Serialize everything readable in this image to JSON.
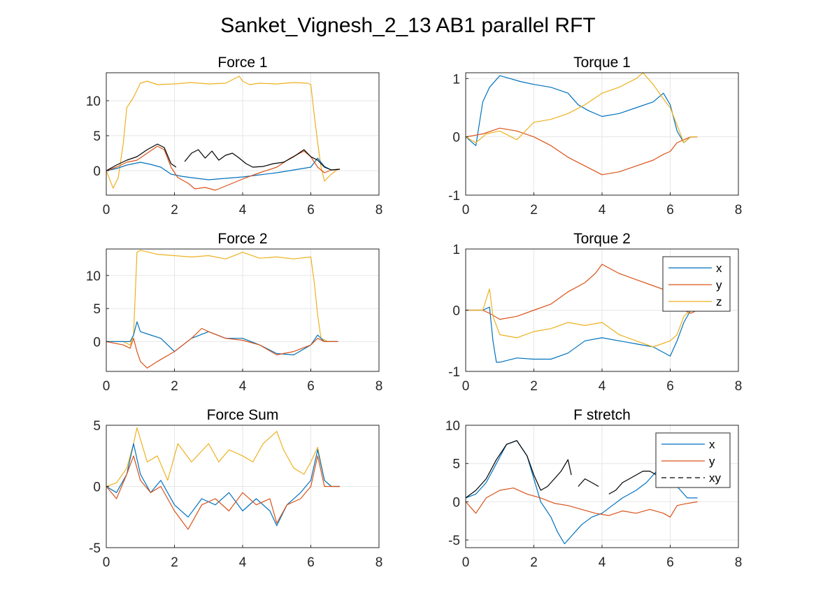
{
  "figure": {
    "title": "Sanket_Vignesh_2_13 AB1 parallel RFT"
  },
  "colors": {
    "x": "#0072BD",
    "y": "#D95319",
    "z": "#EDB120",
    "xy": "#000000",
    "grid": "#e6e6e6",
    "axis": "#262626"
  },
  "chart_data": [
    {
      "type": "line",
      "title": "Force 1",
      "xlim": [
        0,
        8
      ],
      "ylim": [
        -3.5,
        14
      ],
      "xticks": [
        0,
        2,
        4,
        6,
        8
      ],
      "yticks": [
        0,
        5,
        10
      ],
      "grid": true,
      "series": [
        {
          "key": "z",
          "x": [
            0,
            0.2,
            0.35,
            0.5,
            0.6,
            0.8,
            1.0,
            1.2,
            1.5,
            2.0,
            2.5,
            3.0,
            3.5,
            3.9,
            4.0,
            4.2,
            4.5,
            5.0,
            5.5,
            5.9,
            6.0,
            6.1,
            6.2,
            6.3,
            6.4,
            6.6,
            6.8,
            6.85
          ],
          "values": [
            0,
            -2.5,
            -1,
            4,
            9,
            10.5,
            12.5,
            12.8,
            12.3,
            12.4,
            12.6,
            12.4,
            12.5,
            13.5,
            12.8,
            12.3,
            12.5,
            12.4,
            12.6,
            12.5,
            12.3,
            8,
            4,
            0.5,
            -1.5,
            -0.5,
            0.2,
            0.2
          ]
        },
        {
          "key": "x",
          "x": [
            0,
            0.3,
            0.6,
            1.0,
            1.3,
            1.6,
            1.9,
            2.2,
            2.5,
            3.0,
            3.5,
            4.0,
            4.5,
            5.0,
            5.5,
            6.0,
            6.2,
            6.4,
            6.6,
            6.85
          ],
          "values": [
            0,
            0.3,
            0.8,
            1.2,
            0.9,
            0.5,
            -0.5,
            -0.8,
            -1.0,
            -1.3,
            -1.1,
            -0.9,
            -0.6,
            -0.3,
            0.1,
            0.5,
            1.8,
            0.6,
            0.1,
            0.2
          ]
        },
        {
          "key": "y",
          "x": [
            0,
            0.3,
            0.6,
            0.9,
            1.2,
            1.5,
            1.7,
            1.9,
            2.1,
            2.4,
            2.6,
            2.9,
            3.2,
            3.5,
            3.8,
            4.1,
            4.5,
            5.0,
            5.4,
            5.8,
            6.0,
            6.2,
            6.4,
            6.6,
            6.85
          ],
          "values": [
            0,
            0.5,
            1.2,
            1.5,
            2.5,
            3.5,
            3.0,
            0.5,
            -1.0,
            -1.8,
            -2.6,
            -2.4,
            -2.8,
            -2.2,
            -1.6,
            -1.0,
            -0.3,
            0.5,
            1.8,
            2.8,
            2.0,
            0.5,
            -0.3,
            0.1,
            0.2
          ]
        },
        {
          "key": "xy",
          "x": [
            0,
            0.3,
            0.6,
            0.9,
            1.2,
            1.5,
            1.7,
            1.9,
            2.05,
            null,
            2.3,
            2.5,
            2.7,
            2.9,
            3.1,
            3.3,
            3.5,
            3.7,
            3.9,
            4.1,
            4.3,
            4.6,
            4.9,
            5.2,
            5.5,
            5.8,
            6.0,
            6.2,
            6.4,
            6.6,
            6.85
          ],
          "values": [
            0,
            0.8,
            1.5,
            2.0,
            3.0,
            3.8,
            3.3,
            1.0,
            0.5,
            null,
            1.3,
            2.5,
            3.0,
            1.8,
            2.8,
            1.5,
            2.2,
            2.5,
            1.8,
            1.0,
            0.5,
            0.6,
            1.0,
            1.2,
            2.0,
            3.0,
            2.0,
            1.5,
            0.5,
            0.1,
            0.2
          ]
        }
      ]
    },
    {
      "type": "line",
      "title": "Torque 1",
      "xlim": [
        0,
        8
      ],
      "ylim": [
        -1,
        1.1
      ],
      "xticks": [
        0,
        2,
        4,
        6,
        8
      ],
      "yticks": [
        -1,
        0,
        1
      ],
      "grid": true,
      "series": [
        {
          "key": "x",
          "x": [
            0,
            0.3,
            0.5,
            0.7,
            1.0,
            1.3,
            1.6,
            2.0,
            2.5,
            3.0,
            3.3,
            3.6,
            4.0,
            4.5,
            5.0,
            5.5,
            5.8,
            6.0,
            6.2,
            6.4,
            6.6,
            6.8
          ],
          "values": [
            0,
            -0.15,
            0.6,
            0.85,
            1.05,
            1.0,
            0.95,
            0.9,
            0.85,
            0.75,
            0.55,
            0.45,
            0.35,
            0.4,
            0.5,
            0.6,
            0.75,
            0.55,
            0.1,
            -0.1,
            0,
            0
          ]
        },
        {
          "key": "y",
          "x": [
            0,
            0.5,
            1.0,
            1.5,
            2.0,
            2.5,
            3.0,
            3.5,
            4.0,
            4.5,
            5.0,
            5.5,
            5.8,
            6.0,
            6.2,
            6.4,
            6.6,
            6.8
          ],
          "values": [
            0,
            0.05,
            0.15,
            0.1,
            0.0,
            -0.15,
            -0.35,
            -0.5,
            -0.65,
            -0.6,
            -0.5,
            -0.4,
            -0.3,
            -0.25,
            -0.1,
            -0.05,
            0,
            0
          ]
        },
        {
          "key": "z",
          "x": [
            0,
            0.3,
            0.6,
            1.0,
            1.5,
            2.0,
            2.5,
            3.0,
            3.5,
            4.0,
            4.5,
            5.0,
            5.2,
            5.5,
            5.8,
            6.0,
            6.2,
            6.4,
            6.6,
            6.8
          ],
          "values": [
            0,
            -0.1,
            0.05,
            0.1,
            -0.05,
            0.25,
            0.3,
            0.4,
            0.55,
            0.75,
            0.85,
            1.0,
            1.1,
            0.9,
            0.65,
            0.5,
            0.2,
            -0.1,
            0,
            0
          ]
        }
      ]
    },
    {
      "type": "line",
      "title": "Force 2",
      "xlim": [
        0,
        8
      ],
      "ylim": [
        -4.5,
        14
      ],
      "xticks": [
        0,
        2,
        4,
        6,
        8
      ],
      "yticks": [
        0,
        5,
        10
      ],
      "grid": true,
      "series": [
        {
          "key": "z",
          "x": [
            0,
            0.5,
            0.7,
            0.8,
            0.9,
            1.0,
            1.5,
            2.0,
            2.5,
            3.0,
            3.5,
            4.0,
            4.5,
            5.0,
            5.5,
            6.0,
            6.1,
            6.2,
            6.3,
            6.5,
            6.8
          ],
          "values": [
            0,
            0,
            -0.5,
            1.0,
            13.5,
            13.8,
            13.2,
            13.0,
            12.8,
            13.0,
            12.5,
            13.5,
            12.6,
            12.8,
            12.5,
            12.8,
            9,
            4,
            0.5,
            0,
            0
          ]
        },
        {
          "key": "x",
          "x": [
            0,
            0.5,
            0.7,
            0.8,
            0.9,
            1.0,
            1.3,
            1.6,
            2.0,
            2.5,
            3.0,
            3.5,
            4.0,
            4.5,
            5.0,
            5.5,
            6.0,
            6.2,
            6.4,
            6.8
          ],
          "values": [
            0,
            0,
            0,
            1.0,
            3.0,
            1.5,
            1.0,
            0.5,
            -1.5,
            0.5,
            1.5,
            0.5,
            0.5,
            -0.5,
            -1.8,
            -2.0,
            -0.5,
            1.0,
            0,
            0
          ]
        },
        {
          "key": "y",
          "x": [
            0,
            0.5,
            0.7,
            0.8,
            0.9,
            1.0,
            1.2,
            1.5,
            2.0,
            2.5,
            2.8,
            3.0,
            3.5,
            4.0,
            4.5,
            5.0,
            5.5,
            6.0,
            6.2,
            6.4,
            6.8
          ],
          "values": [
            0,
            -0.5,
            -1.0,
            0.5,
            -1.5,
            -3.0,
            -4.0,
            -3.0,
            -1.5,
            0.5,
            2.0,
            1.5,
            0.5,
            0.2,
            -0.5,
            -2.0,
            -1.5,
            -0.5,
            0.5,
            0,
            0
          ]
        }
      ]
    },
    {
      "type": "line",
      "title": "Torque 2",
      "xlim": [
        0,
        8
      ],
      "ylim": [
        -1,
        1
      ],
      "xticks": [
        0,
        2,
        4,
        6,
        8
      ],
      "yticks": [
        -1,
        0,
        1
      ],
      "grid": true,
      "legend": {
        "entries": [
          "x",
          "y",
          "z"
        ],
        "placement": "top-right"
      },
      "series": [
        {
          "key": "x",
          "x": [
            0,
            0.5,
            0.7,
            0.8,
            0.9,
            1.0,
            1.5,
            2.0,
            2.5,
            3.0,
            3.5,
            4.0,
            4.5,
            5.0,
            5.5,
            6.0,
            6.2,
            6.4,
            6.6,
            6.8
          ],
          "values": [
            0,
            0,
            0.05,
            -0.5,
            -0.85,
            -0.85,
            -0.78,
            -0.8,
            -0.8,
            -0.7,
            -0.5,
            -0.45,
            -0.5,
            -0.55,
            -0.6,
            -0.75,
            -0.5,
            -0.2,
            0,
            0
          ]
        },
        {
          "key": "y",
          "x": [
            0,
            0.5,
            0.7,
            1.0,
            1.5,
            2.0,
            2.5,
            3.0,
            3.5,
            3.8,
            4.0,
            4.5,
            5.0,
            5.5,
            6.0,
            6.2,
            6.4,
            6.6,
            6.8
          ],
          "values": [
            0,
            0,
            -0.05,
            -0.15,
            -0.1,
            0.0,
            0.1,
            0.3,
            0.45,
            0.6,
            0.75,
            0.6,
            0.5,
            0.4,
            0.3,
            0.2,
            0.0,
            -0.05,
            0
          ]
        },
        {
          "key": "z",
          "x": [
            0,
            0.5,
            0.7,
            0.8,
            1.0,
            1.5,
            2.0,
            2.5,
            3.0,
            3.5,
            4.0,
            4.5,
            5.0,
            5.5,
            6.0,
            6.2,
            6.4,
            6.6,
            6.8
          ],
          "values": [
            0,
            0,
            0.35,
            -0.1,
            -0.4,
            -0.45,
            -0.35,
            -0.3,
            -0.2,
            -0.25,
            -0.2,
            -0.4,
            -0.5,
            -0.6,
            -0.5,
            -0.4,
            -0.1,
            0,
            0
          ]
        }
      ]
    },
    {
      "type": "line",
      "title": "Force Sum",
      "xlim": [
        0,
        8
      ],
      "ylim": [
        -5,
        5
      ],
      "xticks": [
        0,
        2,
        4,
        6,
        8
      ],
      "yticks": [
        -5,
        0,
        5
      ],
      "grid": true,
      "series": [
        {
          "key": "z",
          "x": [
            0,
            0.3,
            0.6,
            0.8,
            0.9,
            1.2,
            1.5,
            1.8,
            2.1,
            2.5,
            3.0,
            3.3,
            3.6,
            4.0,
            4.3,
            4.6,
            5.0,
            5.2,
            5.5,
            5.8,
            6.0,
            6.2,
            6.4,
            6.6,
            6.85
          ],
          "values": [
            0,
            0.3,
            1.5,
            3.5,
            4.8,
            2.0,
            2.5,
            0.5,
            3.5,
            2.0,
            3.5,
            2.0,
            3.0,
            2.5,
            2.0,
            3.5,
            4.5,
            3.0,
            1.5,
            1.0,
            2.0,
            3.2,
            0.5,
            0,
            0
          ]
        },
        {
          "key": "x",
          "x": [
            0,
            0.3,
            0.6,
            0.8,
            1.0,
            1.3,
            1.6,
            2.0,
            2.4,
            2.8,
            3.2,
            3.6,
            4.0,
            4.4,
            4.8,
            5.0,
            5.3,
            5.7,
            6.0,
            6.2,
            6.4,
            6.6,
            6.85
          ],
          "values": [
            0,
            -0.5,
            1.0,
            3.5,
            1.0,
            -0.5,
            0.5,
            -1.5,
            -2.5,
            -1.0,
            -1.5,
            -0.5,
            -2.0,
            -1.0,
            -2.0,
            -3.2,
            -1.5,
            -0.5,
            0.5,
            3.0,
            0.5,
            0,
            0
          ]
        },
        {
          "key": "y",
          "x": [
            0,
            0.3,
            0.6,
            0.8,
            1.0,
            1.3,
            1.6,
            2.0,
            2.4,
            2.8,
            3.2,
            3.6,
            4.0,
            4.4,
            4.8,
            5.0,
            5.3,
            5.7,
            6.0,
            6.2,
            6.4,
            6.6,
            6.85
          ],
          "values": [
            0,
            -1.0,
            1.0,
            2.5,
            0.5,
            -0.5,
            0.0,
            -2.0,
            -3.5,
            -1.5,
            -1.0,
            -2.0,
            -0.5,
            -1.5,
            -1.0,
            -3.0,
            -1.5,
            -1.0,
            0.0,
            2.5,
            0.0,
            0,
            0
          ]
        }
      ]
    },
    {
      "type": "line",
      "title": "F stretch",
      "xlim": [
        0,
        8
      ],
      "ylim": [
        -6,
        10
      ],
      "xticks": [
        0,
        2,
        4,
        6,
        8
      ],
      "yticks": [
        -5,
        0,
        5,
        10
      ],
      "grid": true,
      "legend": {
        "entries": [
          "x",
          "y",
          "xy"
        ],
        "placement": "top-right"
      },
      "series": [
        {
          "key": "x",
          "x": [
            0,
            0.3,
            0.6,
            0.9,
            1.2,
            1.5,
            1.8,
            2.0,
            2.2,
            2.5,
            2.7,
            2.9,
            3.1,
            3.4,
            3.7,
            4.0,
            4.3,
            4.6,
            5.0,
            5.3,
            5.6,
            5.9,
            6.0,
            6.2,
            6.5,
            6.8
          ],
          "values": [
            0.5,
            1.0,
            2.5,
            5.0,
            7.5,
            8.0,
            6.0,
            3.0,
            0.0,
            -2.0,
            -4.0,
            -5.5,
            -4.5,
            -3.0,
            -2.0,
            -1.5,
            -0.5,
            0.5,
            1.5,
            2.5,
            4.0,
            6.0,
            5.0,
            2.0,
            0.5,
            0.5
          ]
        },
        {
          "key": "y",
          "x": [
            0,
            0.3,
            0.6,
            1.0,
            1.4,
            1.8,
            2.2,
            2.6,
            3.0,
            3.4,
            3.8,
            4.2,
            4.6,
            5.0,
            5.4,
            5.8,
            6.0,
            6.2,
            6.4,
            6.8
          ],
          "values": [
            0,
            -1.5,
            0.5,
            1.5,
            1.8,
            1.0,
            0.5,
            -0.2,
            -0.5,
            -1.0,
            -1.5,
            -1.8,
            -1.2,
            -1.5,
            -1.0,
            -1.5,
            -2.0,
            -0.5,
            -0.3,
            0
          ]
        },
        {
          "key": "xy",
          "x": [
            0,
            0.3,
            0.6,
            0.9,
            1.2,
            1.5,
            1.8,
            2.0,
            2.2,
            2.4,
            2.6,
            2.8,
            3.0,
            3.1,
            null,
            3.3,
            3.5,
            3.7,
            3.9,
            null,
            4.2,
            4.4,
            4.6,
            4.8,
            5.0,
            5.2,
            5.4,
            5.6,
            5.8,
            6.0
          ],
          "values": [
            0.5,
            1.5,
            3.0,
            5.5,
            7.5,
            8.0,
            6.0,
            3.5,
            1.5,
            2.0,
            3.0,
            4.0,
            5.5,
            3.5,
            null,
            2.0,
            3.0,
            2.5,
            2.0,
            null,
            1.0,
            1.5,
            2.5,
            3.0,
            3.5,
            4.0,
            4.0,
            3.5,
            2.5,
            3.5
          ]
        }
      ]
    }
  ]
}
